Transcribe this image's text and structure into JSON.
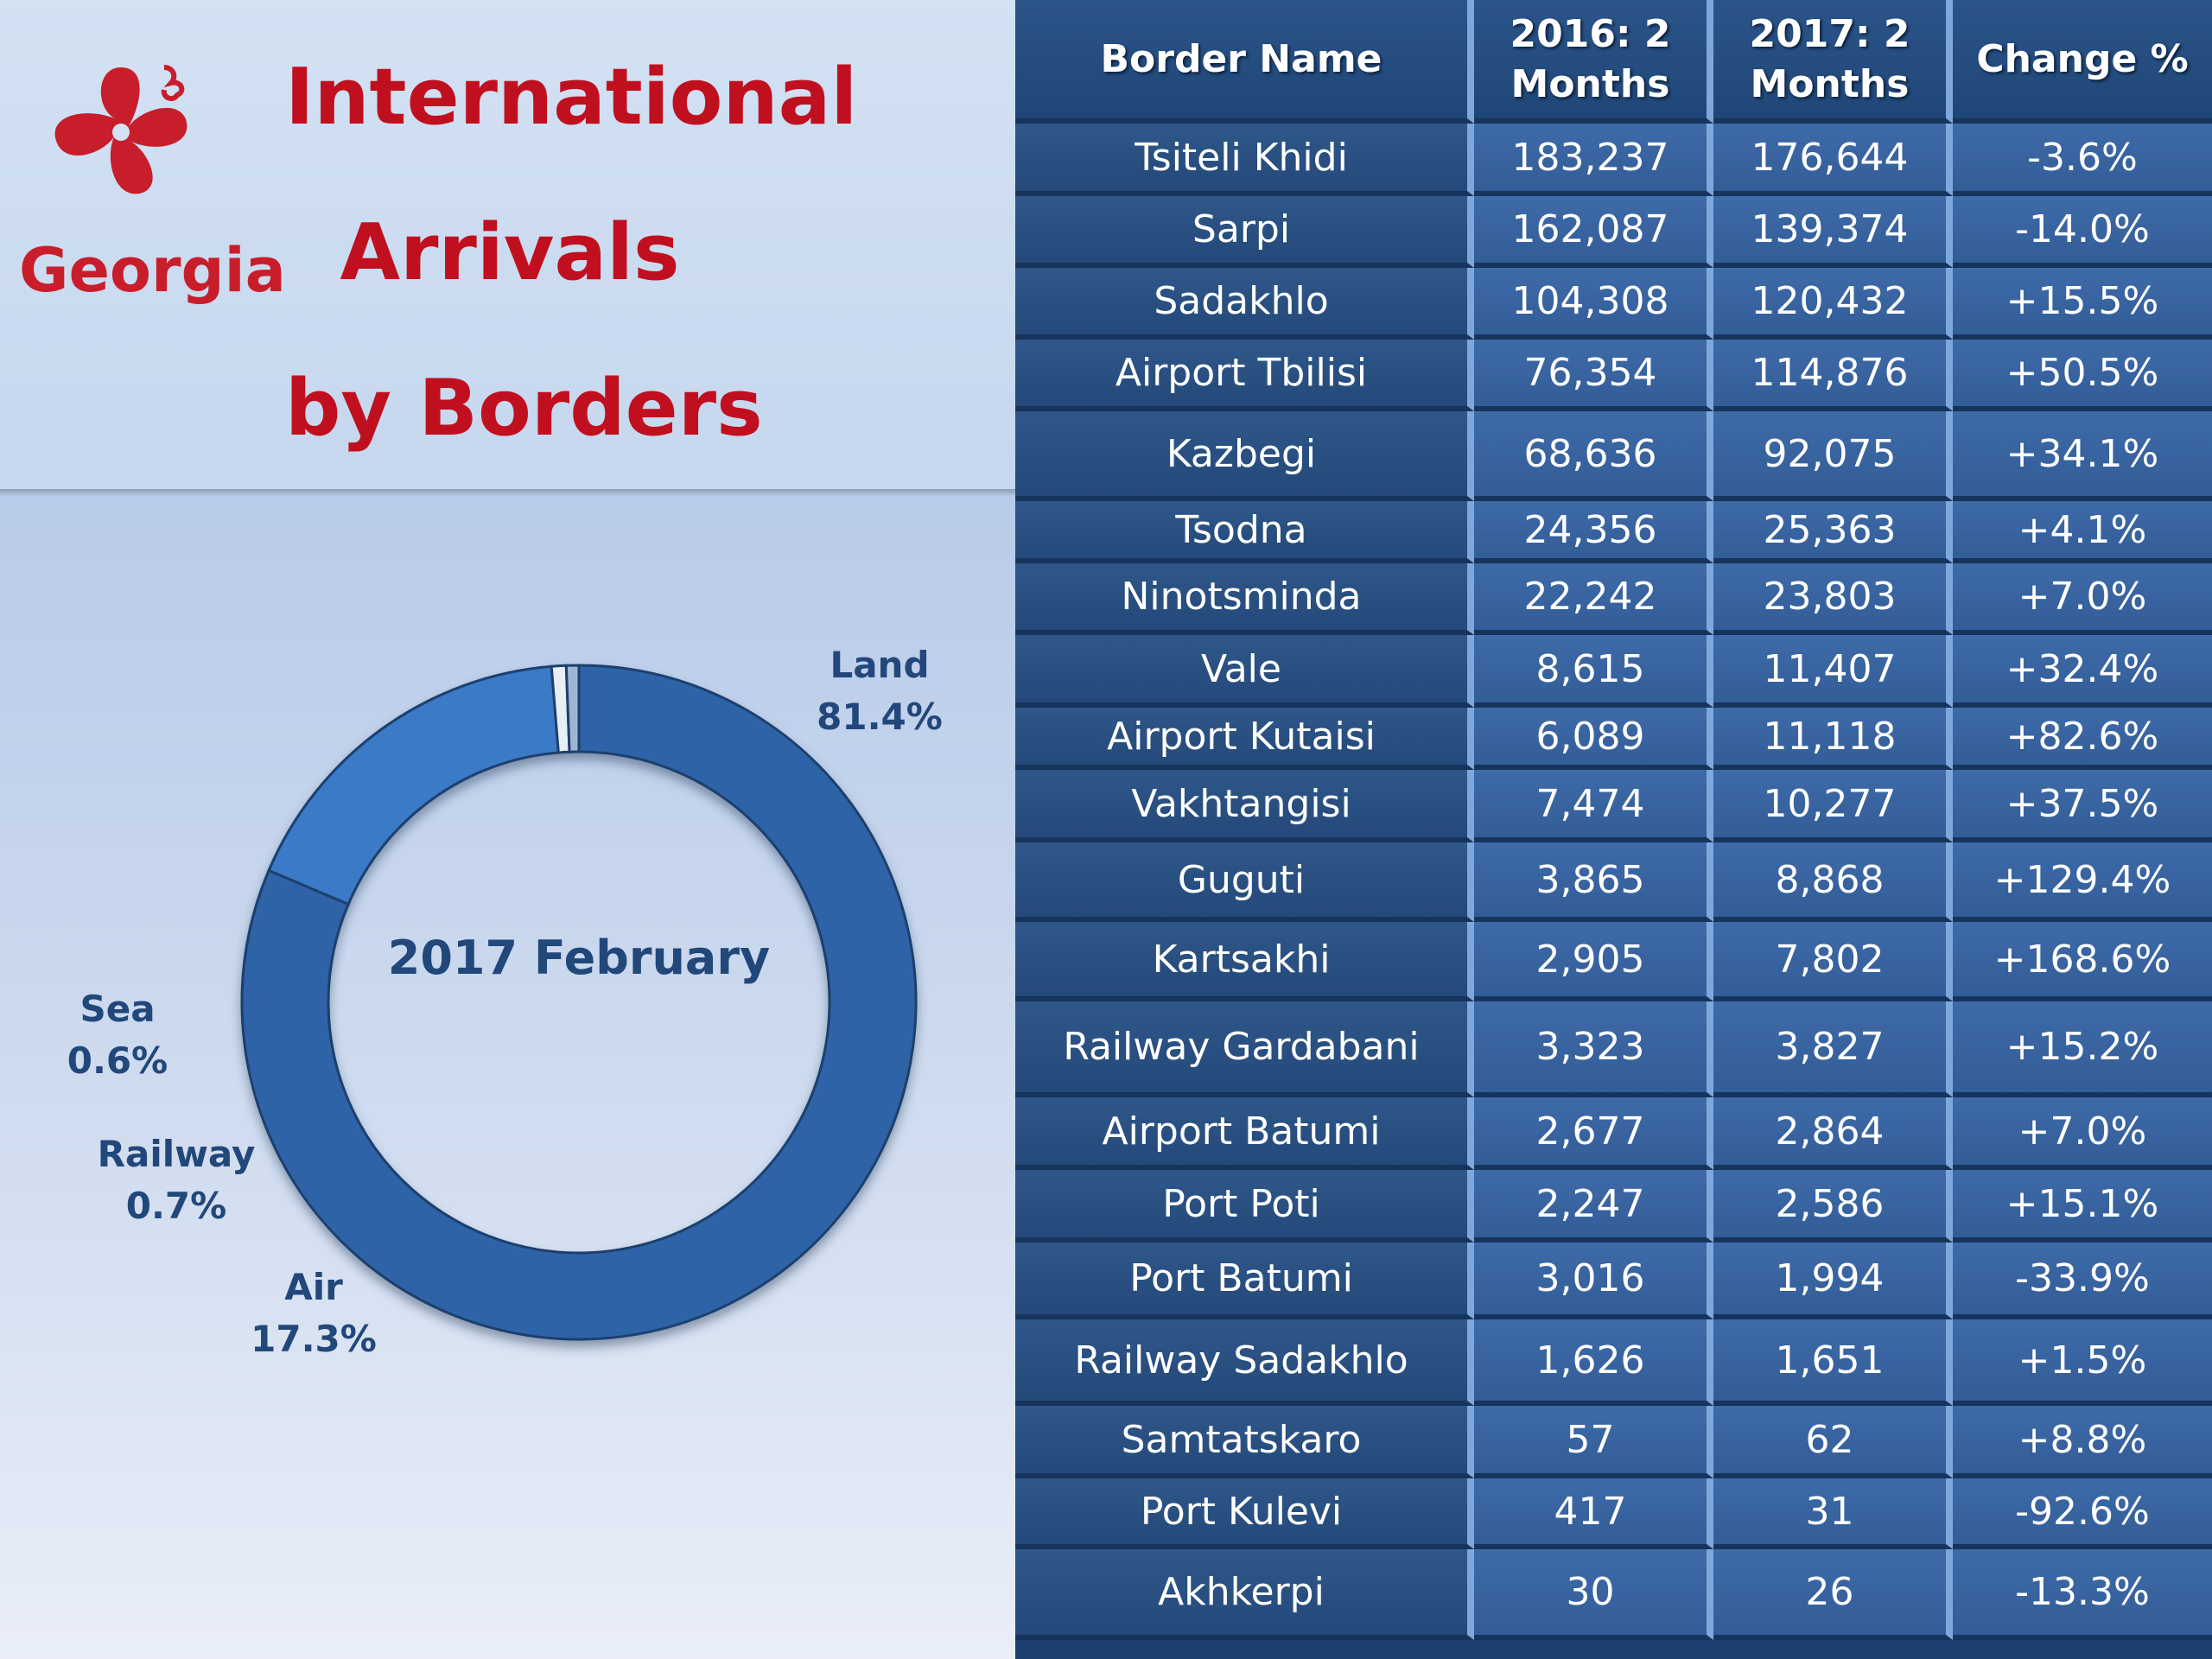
{
  "branding": {
    "logo_text": "Georgia",
    "colors": {
      "brand_red": "#c81d2a",
      "table_dark": "#24497a",
      "table_mid": "#3a66a4"
    }
  },
  "title": {
    "line1": "International",
    "line2": "Arrivals",
    "line3": "by Borders"
  },
  "table": {
    "headers": [
      "Border Name",
      "2016: 2 Months",
      "2017: 2 Months",
      "Change %"
    ],
    "rows": [
      [
        "Tsiteli Khidi",
        "183,237",
        "176,644",
        "-3.6%"
      ],
      [
        "Sarpi",
        "162,087",
        "139,374",
        "-14.0%"
      ],
      [
        "Sadakhlo",
        "104,308",
        "120,432",
        "+15.5%"
      ],
      [
        "Airport Tbilisi",
        "76,354",
        "114,876",
        "+50.5%"
      ],
      [
        "Kazbegi",
        "68,636",
        "92,075",
        "+34.1%"
      ],
      [
        "Tsodna",
        "24,356",
        "25,363",
        "+4.1%"
      ],
      [
        "Ninotsminda",
        "22,242",
        "23,803",
        "+7.0%"
      ],
      [
        "Vale",
        "8,615",
        "11,407",
        "+32.4%"
      ],
      [
        "Airport Kutaisi",
        "6,089",
        "11,118",
        "+82.6%"
      ],
      [
        "Vakhtangisi",
        "7,474",
        "10,277",
        "+37.5%"
      ],
      [
        "Guguti",
        "3,865",
        "8,868",
        "+129.4%"
      ],
      [
        "Kartsakhi",
        "2,905",
        "7,802",
        "+168.6%"
      ],
      [
        "Railway Gardabani",
        "3,323",
        "3,827",
        "+15.2%"
      ],
      [
        "Airport Batumi",
        "2,677",
        "2,864",
        "+7.0%"
      ],
      [
        "Port Poti",
        "2,247",
        "2,586",
        "+15.1%"
      ],
      [
        "Port Batumi",
        "3,016",
        "1,994",
        "-33.9%"
      ],
      [
        "Railway Sadakhlo",
        "1,626",
        "1,651",
        "+1.5%"
      ],
      [
        "Samtatskaro",
        "57",
        "62",
        "+8.8%"
      ],
      [
        "Port Kulevi",
        "417",
        "31",
        "-92.6%"
      ],
      [
        "Akhkerpi",
        "30",
        "26",
        "-13.3%"
      ]
    ]
  },
  "chart_data": {
    "type": "pie",
    "variant": "donut",
    "title": "2017 February",
    "slices": [
      {
        "label": "Land",
        "value": 81.4,
        "display": "81.4%",
        "color": "#2e64a8"
      },
      {
        "label": "Air",
        "value": 17.3,
        "display": "17.3%",
        "color": "#3a7ac7"
      },
      {
        "label": "Railway",
        "value": 0.7,
        "display": "0.7%",
        "color": "#e9eef5"
      },
      {
        "label": "Sea",
        "value": 0.6,
        "display": "0.6%",
        "color": "#9fb6d3"
      }
    ]
  }
}
